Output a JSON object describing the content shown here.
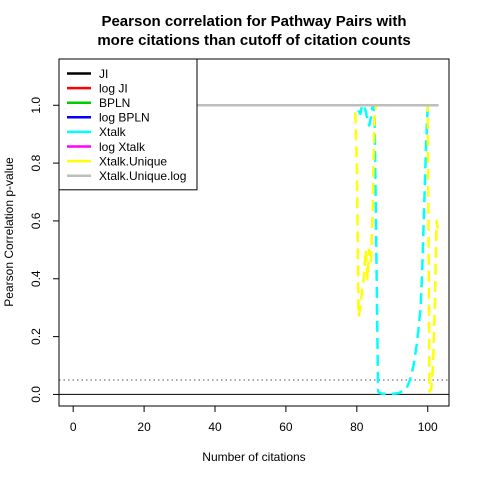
{
  "chart_data": {
    "type": "line",
    "title": [
      "Pearson correlation for Pathway Pairs with",
      "more citations than cutoff of citation counts"
    ],
    "xlabel": "Number of citations",
    "ylabel": "Pearson Correlation p-value",
    "xlim": [
      -4,
      106
    ],
    "ylim": [
      -0.04,
      1.16
    ],
    "x_ticks": [
      0,
      20,
      40,
      60,
      80,
      100
    ],
    "y_ticks": [
      0.0,
      0.2,
      0.4,
      0.6,
      0.8,
      1.0
    ],
    "x_tick_labels": [
      "0",
      "20",
      "40",
      "60",
      "80",
      "100"
    ],
    "y_tick_labels": [
      "0.0",
      "0.2",
      "0.4",
      "0.6",
      "0.8",
      "1.0"
    ],
    "reference_lines": [
      {
        "y": 0.05,
        "style": "dotted",
        "color": "#555555"
      },
      {
        "y": 0.0,
        "style": "solid",
        "color": "#000000"
      }
    ],
    "legend": {
      "position": "top-left"
    },
    "series": [
      {
        "name": "JI",
        "color": "#000000",
        "dash": "solid",
        "x": [
          0,
          103
        ],
        "y": [
          1.0,
          1.0
        ]
      },
      {
        "name": "log JI",
        "color": "#ff0000",
        "dash": "solid",
        "x": [
          0,
          103
        ],
        "y": [
          1.0,
          1.0
        ]
      },
      {
        "name": "BPLN",
        "color": "#00cd00",
        "dash": "solid",
        "x": [
          0,
          103
        ],
        "y": [
          1.0,
          1.0
        ]
      },
      {
        "name": "log BPLN",
        "color": "#0000ff",
        "dash": "solid",
        "x": [
          0,
          103
        ],
        "y": [
          1.0,
          1.0
        ]
      },
      {
        "name": "Xtalk",
        "color": "#00ffff",
        "dash": "dashed",
        "x": [
          0,
          80,
          80.5,
          81,
          81.5,
          82,
          82.5,
          83,
          83.5,
          84,
          84.5,
          85,
          85.5,
          86,
          86.5,
          87,
          88,
          90,
          92,
          94,
          95,
          96,
          97,
          98,
          98.5,
          99,
          99.5,
          100,
          101,
          103
        ],
        "y": [
          1.0,
          1.0,
          0.98,
          0.97,
          1.0,
          1.0,
          0.98,
          0.95,
          0.93,
          0.96,
          1.0,
          0.97,
          0.5,
          0.01,
          0.005,
          0.003,
          0.002,
          0.002,
          0.005,
          0.02,
          0.05,
          0.1,
          0.18,
          0.3,
          0.45,
          0.65,
          0.85,
          1.0,
          1.0,
          1.0
        ]
      },
      {
        "name": "log Xtalk",
        "color": "#ff00ff",
        "dash": "dashed",
        "x": [
          0,
          103
        ],
        "y": [
          1.0,
          1.0
        ]
      },
      {
        "name": "Xtalk.Unique",
        "color": "#ffff00",
        "dash": "dashed",
        "x": [
          0,
          79.5,
          80,
          80.5,
          81,
          81.5,
          82,
          82.5,
          83,
          83.5,
          84,
          84.5,
          85,
          85.5,
          86,
          86.5,
          87,
          88,
          90,
          92,
          94,
          96,
          97,
          98,
          99,
          100,
          100.5,
          101,
          101.5,
          102,
          102.5,
          103
        ],
        "y": [
          1.0,
          1.0,
          0.8,
          0.27,
          0.3,
          0.36,
          0.4,
          0.5,
          0.4,
          0.5,
          0.46,
          0.65,
          0.98,
          1.0,
          1.0,
          1.0,
          1.0,
          1.0,
          1.0,
          1.0,
          1.0,
          1.0,
          1.0,
          1.0,
          1.0,
          1.0,
          0.01,
          0.02,
          0.1,
          0.3,
          0.6,
          0.56
        ]
      },
      {
        "name": "Xtalk.Unique.log",
        "color": "#bebebe",
        "dash": "solid",
        "x": [
          0,
          103
        ],
        "y": [
          1.0,
          1.0
        ]
      }
    ]
  }
}
